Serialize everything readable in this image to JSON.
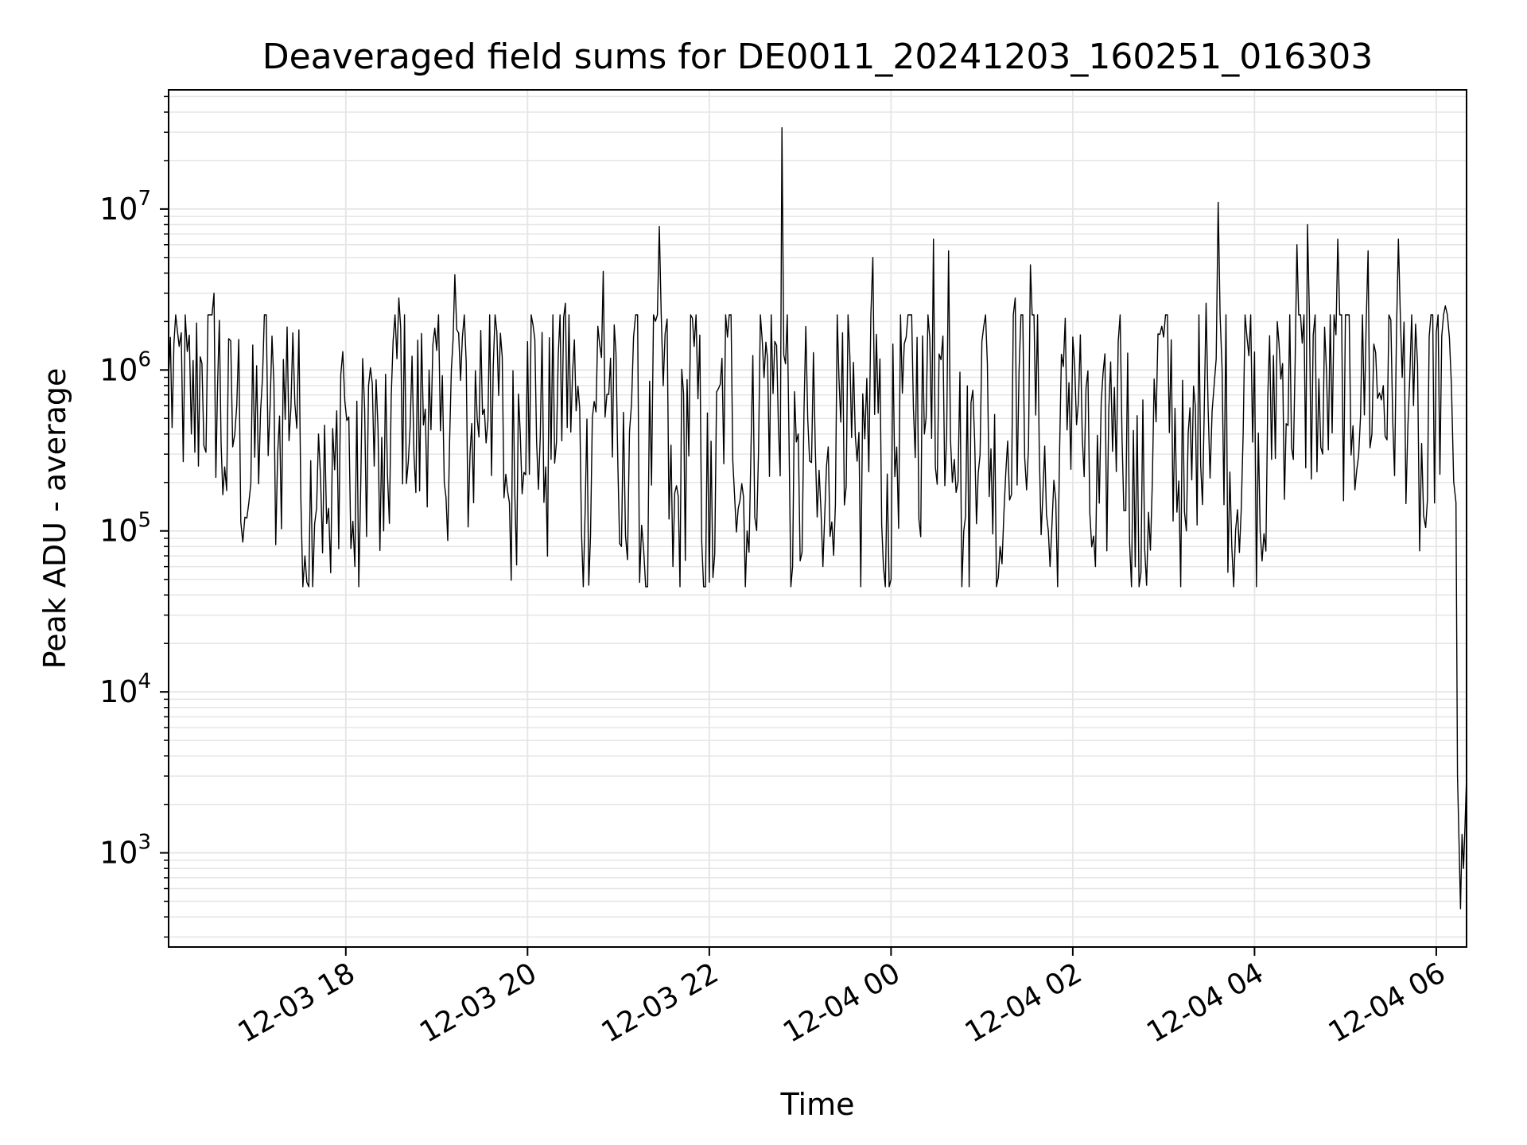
{
  "chart_data": {
    "type": "line",
    "title": "Deaveraged field sums for DE0011_20241203_160251_016303",
    "xlabel": "Time",
    "ylabel": "Peak ADU - average",
    "y_scale": "log",
    "grid": true,
    "grid_color": "#e5e5e5",
    "line_color": "#000000",
    "xlim": [
      "2024-12-03 16:03",
      "2024-12-04 06:20"
    ],
    "ylim": [
      260,
      55000000
    ],
    "x_ticks": [
      {
        "t": "2024-12-03 18:00",
        "label": "12-03 18"
      },
      {
        "t": "2024-12-03 20:00",
        "label": "12-03 20"
      },
      {
        "t": "2024-12-03 22:00",
        "label": "12-03 22"
      },
      {
        "t": "2024-12-04 00:00",
        "label": "12-04 00"
      },
      {
        "t": "2024-12-04 02:00",
        "label": "12-04 02"
      },
      {
        "t": "2024-12-04 04:00",
        "label": "12-04 04"
      },
      {
        "t": "2024-12-04 06:00",
        "label": "12-04 06"
      }
    ],
    "y_ticks": [
      {
        "value": 1000,
        "base": "10",
        "exp": "3"
      },
      {
        "value": 10000,
        "base": "10",
        "exp": "4"
      },
      {
        "value": 100000,
        "base": "10",
        "exp": "5"
      },
      {
        "value": 1000000,
        "base": "10",
        "exp": "6"
      },
      {
        "value": 10000000,
        "base": "10",
        "exp": "7"
      }
    ],
    "series": [
      {
        "values": [
          [
            "2024-12-03 16:03",
            900000
          ],
          [
            "2024-12-03 16:10",
            1400000
          ],
          [
            "2024-12-03 16:18",
            400000
          ],
          [
            "2024-12-03 16:25",
            1100000
          ],
          [
            "2024-12-03 16:33",
            3000000
          ],
          [
            "2024-12-03 16:40",
            250000
          ],
          [
            "2024-12-03 16:48",
            600000
          ],
          [
            "2024-12-03 16:56",
            150000
          ],
          [
            "2024-12-03 17:05",
            900000
          ],
          [
            "2024-12-03 17:15",
            300000
          ],
          [
            "2024-12-03 17:25",
            1700000
          ],
          [
            "2024-12-03 17:33",
            70000
          ],
          [
            "2024-12-03 17:42",
            400000
          ],
          [
            "2024-12-03 17:50",
            55000
          ],
          [
            "2024-12-03 17:58",
            1300000
          ],
          [
            "2024-12-03 18:06",
            60000
          ],
          [
            "2024-12-03 18:15",
            800000
          ],
          [
            "2024-12-03 18:25",
            100000
          ],
          [
            "2024-12-03 18:35",
            2800000
          ],
          [
            "2024-12-03 18:45",
            300000
          ],
          [
            "2024-12-03 18:55",
            1000000
          ],
          [
            "2024-12-03 19:05",
            200000
          ],
          [
            "2024-12-03 19:12",
            3900000
          ],
          [
            "2024-12-03 19:22",
            300000
          ],
          [
            "2024-12-03 19:35",
            2200000
          ],
          [
            "2024-12-03 19:48",
            150000
          ],
          [
            "2024-12-03 20:00",
            1500000
          ],
          [
            "2024-12-03 20:12",
            250000
          ],
          [
            "2024-12-03 20:25",
            2600000
          ],
          [
            "2024-12-03 20:38",
            130000
          ],
          [
            "2024-12-03 20:50",
            4100000
          ],
          [
            "2024-12-03 21:02",
            80000
          ],
          [
            "2024-12-03 21:10",
            1600000
          ],
          [
            "2024-12-03 21:18",
            45000
          ],
          [
            "2024-12-03 21:27",
            7800000
          ],
          [
            "2024-12-03 21:36",
            60000
          ],
          [
            "2024-12-03 21:50",
            1400000
          ],
          [
            "2024-12-03 22:00",
            48000
          ],
          [
            "2024-12-03 22:12",
            1600000
          ],
          [
            "2024-12-03 22:25",
            100000
          ],
          [
            "2024-12-03 22:35",
            1500000
          ],
          [
            "2024-12-03 22:48",
            32000000
          ],
          [
            "2024-12-03 22:55",
            60000
          ],
          [
            "2024-12-03 23:05",
            500000
          ],
          [
            "2024-12-03 23:15",
            60000
          ],
          [
            "2024-12-03 23:28",
            1700000
          ],
          [
            "2024-12-03 23:40",
            45000
          ],
          [
            "2024-12-03 23:48",
            5000000
          ],
          [
            "2024-12-03 23:55",
            60000
          ],
          [
            "2024-12-04 00:10",
            1600000
          ],
          [
            "2024-12-04 00:22",
            400000
          ],
          [
            "2024-12-04 00:28",
            6500000
          ],
          [
            "2024-12-04 00:38",
            5500000
          ],
          [
            "2024-12-04 00:48",
            100000
          ],
          [
            "2024-12-04 01:00",
            1500000
          ],
          [
            "2024-12-04 01:12",
            80000
          ],
          [
            "2024-12-04 01:22",
            2800000
          ],
          [
            "2024-12-04 01:32",
            4500000
          ],
          [
            "2024-12-04 01:45",
            60000
          ],
          [
            "2024-12-04 02:00",
            1600000
          ],
          [
            "2024-12-04 02:15",
            60000
          ],
          [
            "2024-12-04 02:30",
            1500000
          ],
          [
            "2024-12-04 02:45",
            55000
          ],
          [
            "2024-12-04 03:00",
            1600000
          ],
          [
            "2024-12-04 03:15",
            100000
          ],
          [
            "2024-12-04 03:28",
            2600000
          ],
          [
            "2024-12-04 03:36",
            11000000
          ],
          [
            "2024-12-04 03:45",
            80000
          ],
          [
            "2024-12-04 03:55",
            1600000
          ],
          [
            "2024-12-04 04:05",
            65000
          ],
          [
            "2024-12-04 04:15",
            2000000
          ],
          [
            "2024-12-04 04:28",
            6000000
          ],
          [
            "2024-12-04 04:35",
            8000000
          ],
          [
            "2024-12-04 04:45",
            300000
          ],
          [
            "2024-12-04 04:55",
            6500000
          ],
          [
            "2024-12-04 05:05",
            450000
          ],
          [
            "2024-12-04 05:15",
            5500000
          ],
          [
            "2024-12-04 05:25",
            800000
          ],
          [
            "2024-12-04 05:35",
            6500000
          ],
          [
            "2024-12-04 05:45",
            600000
          ],
          [
            "2024-12-04 05:53",
            105000
          ],
          [
            "2024-12-04 06:00",
            1700000
          ],
          [
            "2024-12-04 06:06",
            2500000
          ],
          [
            "2024-12-04 06:10",
            800000
          ],
          [
            "2024-12-04 06:13",
            150000
          ],
          [
            "2024-12-04 06:14",
            3000
          ],
          [
            "2024-12-04 06:15",
            1200
          ],
          [
            "2024-12-04 06:16",
            450
          ],
          [
            "2024-12-04 06:17",
            1300
          ],
          [
            "2024-12-04 06:18",
            800
          ],
          [
            "2024-12-04 06:19",
            1500
          ],
          [
            "2024-12-04 06:20",
            3000
          ]
        ]
      }
    ]
  }
}
